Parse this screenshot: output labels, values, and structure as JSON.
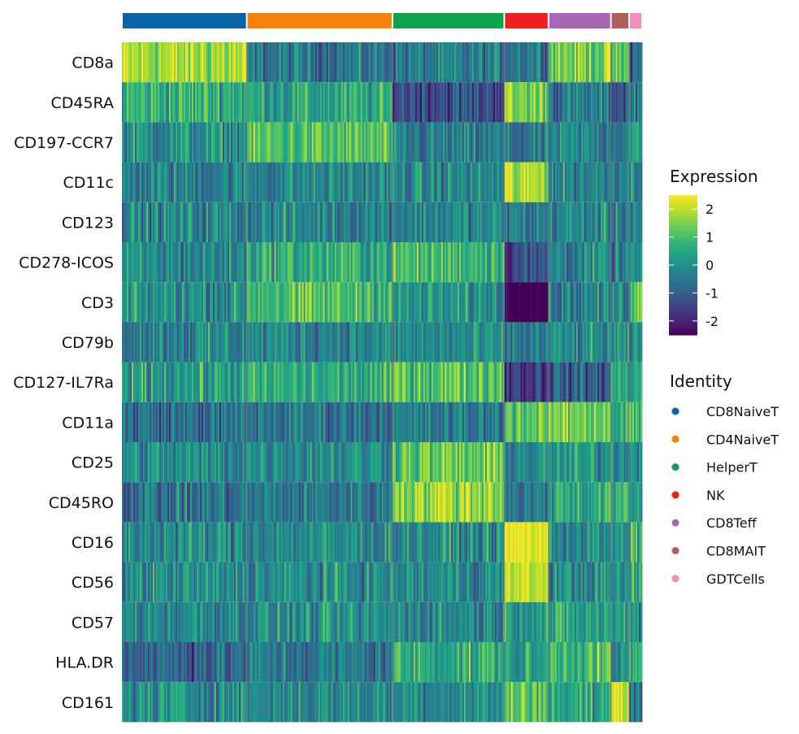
{
  "chart_data": {
    "type": "heatmap",
    "title": "",
    "rows": [
      "CD8a",
      "CD45RA",
      "CD197-CCR7",
      "CD11c",
      "CD123",
      "CD278-ICOS",
      "CD3",
      "CD79b",
      "CD127-IL7Ra",
      "CD11a",
      "CD25",
      "CD45RO",
      "CD16",
      "CD56",
      "CD57",
      "HLA.DR",
      "CD161"
    ],
    "groups": [
      {
        "name": "CD8NaiveT",
        "color": "#0a64a8",
        "cell_share": 0.24
      },
      {
        "name": "CD4NaiveT",
        "color": "#f5820d",
        "cell_share": 0.28
      },
      {
        "name": "HelperT",
        "color": "#0aa24a",
        "cell_share": 0.215
      },
      {
        "name": "NK",
        "color": "#f21c1c",
        "cell_share": 0.085
      },
      {
        "name": "CD8Teff",
        "color": "#a966b8",
        "cell_share": 0.12
      },
      {
        "name": "CD8MAIT",
        "color": "#b0605a",
        "cell_share": 0.035
      },
      {
        "name": "GDTCells",
        "color": "#f58fbf",
        "cell_share": 0.025
      }
    ],
    "mean_expression": [
      [
        1.8,
        -0.5,
        -0.5,
        -0.3,
        1.5,
        1.0,
        -0.8
      ],
      [
        0.7,
        0.4,
        -1.2,
        1.4,
        -0.5,
        -1.0,
        -0.3
      ],
      [
        0.0,
        1.0,
        -0.5,
        -0.6,
        -0.3,
        -0.3,
        0.0
      ],
      [
        -0.3,
        -0.2,
        -0.2,
        1.8,
        -0.2,
        0.0,
        0.0
      ],
      [
        -0.2,
        -0.2,
        -0.2,
        -0.4,
        -0.2,
        -0.2,
        -0.2
      ],
      [
        -0.2,
        0.6,
        0.9,
        -1.3,
        -0.2,
        -0.5,
        -0.2
      ],
      [
        0.0,
        1.0,
        0.0,
        -2.5,
        -0.3,
        -0.2,
        1.2
      ],
      [
        -0.2,
        -0.2,
        -0.2,
        -0.5,
        -0.2,
        -0.2,
        -0.2
      ],
      [
        0.3,
        0.5,
        1.2,
        -1.5,
        -1.0,
        0.5,
        0.6
      ],
      [
        -0.7,
        -0.5,
        -0.5,
        1.2,
        1.5,
        0.5,
        1.0
      ],
      [
        -0.1,
        0.0,
        1.2,
        -0.1,
        0.1,
        0.1,
        0.0
      ],
      [
        -0.6,
        -0.5,
        1.8,
        -0.5,
        0.6,
        0.5,
        0.2
      ],
      [
        -0.1,
        -0.1,
        -0.1,
        2.3,
        -0.1,
        -0.1,
        0.5
      ],
      [
        -0.1,
        -0.1,
        -0.1,
        2.0,
        -0.1,
        -0.1,
        0.5
      ],
      [
        -0.1,
        -0.1,
        -0.1,
        0.4,
        0.3,
        0.2,
        0.2
      ],
      [
        -0.8,
        -0.5,
        0.6,
        0.2,
        1.0,
        -0.2,
        0.6
      ],
      [
        0.0,
        -0.1,
        0.0,
        1.2,
        0.4,
        2.2,
        -0.2
      ]
    ],
    "color_scale": {
      "title": "Expression",
      "palette": "viridis",
      "range": [
        -2.5,
        2.5
      ],
      "ticks": [
        2,
        1,
        0,
        -1,
        -2
      ]
    },
    "legend_title": "Identity",
    "legend_position": "right"
  }
}
